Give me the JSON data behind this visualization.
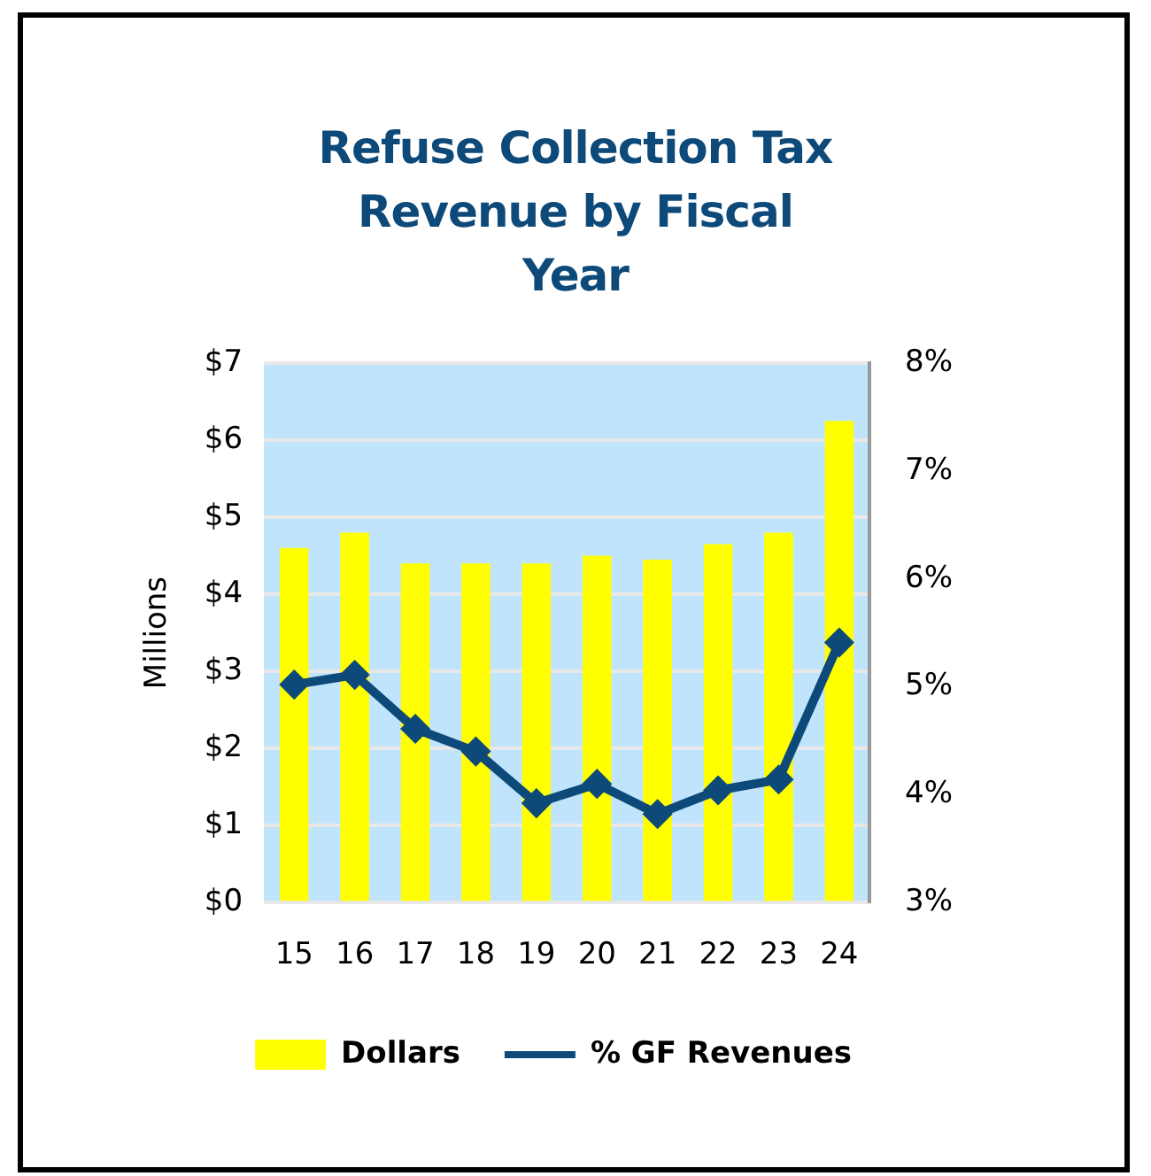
{
  "chart_data": {
    "type": "bar",
    "title": "Refuse Collection Tax Revenue by Fiscal Year",
    "ylabel": "Millions",
    "categories": [
      "15",
      "16",
      "17",
      "18",
      "19",
      "20",
      "21",
      "22",
      "23",
      "24"
    ],
    "series": [
      {
        "name": "Dollars",
        "color": "#ffff00",
        "values": [
          4.6,
          4.8,
          4.4,
          4.4,
          4.4,
          4.5,
          4.45,
          4.65,
          4.8,
          6.25
        ]
      },
      {
        "name": "% GF Revenues",
        "type": "line",
        "axis": "y2",
        "color": "#0d4a7a",
        "marker": "diamond",
        "values": [
          5.02,
          5.11,
          4.61,
          4.4,
          3.92,
          4.1,
          3.82,
          4.04,
          4.14,
          5.41
        ]
      }
    ],
    "ylim": [
      0,
      7
    ],
    "yticks": [
      {
        "value": 0,
        "label": "$0"
      },
      {
        "value": 1,
        "label": "$1"
      },
      {
        "value": 2,
        "label": "$2"
      },
      {
        "value": 3,
        "label": "$3"
      },
      {
        "value": 4,
        "label": "$4"
      },
      {
        "value": 5,
        "label": "$5"
      },
      {
        "value": 6,
        "label": "$6"
      },
      {
        "value": 7,
        "label": "$7"
      }
    ],
    "y2lim": [
      3,
      8
    ],
    "y2ticks": [
      {
        "value": 3,
        "label": "3%"
      },
      {
        "value": 4,
        "label": "4%"
      },
      {
        "value": 5,
        "label": "5%"
      },
      {
        "value": 6,
        "label": "6%"
      },
      {
        "value": 7,
        "label": "7%"
      },
      {
        "value": 8,
        "label": "8%"
      }
    ],
    "grid": "y",
    "legend": "bottom"
  }
}
